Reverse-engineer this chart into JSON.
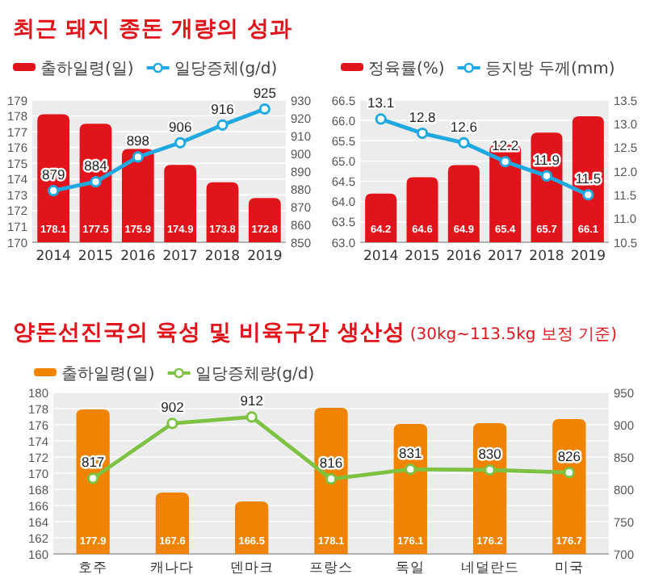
{
  "chart_data": [
    {
      "type": "bar",
      "title": "최근 돼지 종돈 개량의 성과",
      "categories": [
        "2014",
        "2015",
        "2016",
        "2017",
        "2018",
        "2019"
      ],
      "series": [
        {
          "name": "출하일령(일)",
          "type": "bar",
          "color": "#e2141b",
          "values": [
            178.1,
            177.5,
            175.9,
            174.9,
            173.8,
            172.8
          ]
        },
        {
          "name": "일당증체(g/d)",
          "type": "line",
          "axis": "y2",
          "color": "#20a9e1",
          "values": [
            879,
            884,
            898,
            906,
            916,
            925
          ]
        }
      ],
      "ylim": [
        170,
        179
      ],
      "yticks": [
        170,
        171,
        172,
        173,
        174,
        175,
        176,
        177,
        178,
        179
      ],
      "y2lim": [
        850,
        930
      ],
      "y2ticks": [
        850,
        860,
        870,
        880,
        890,
        900,
        910,
        920,
        930
      ],
      "grid": "y",
      "legend": "top left",
      "marker": "circle",
      "data_labels": true
    },
    {
      "type": "bar",
      "categories": [
        "2014",
        "2015",
        "2016",
        "2017",
        "2018",
        "2019"
      ],
      "series": [
        {
          "name": "정육률(%)",
          "type": "bar",
          "color": "#e2141b",
          "values": [
            64.2,
            64.6,
            64.9,
            65.4,
            65.7,
            66.1
          ]
        },
        {
          "name": "등지방 두께(mm)",
          "type": "line",
          "axis": "y2",
          "color": "#20a9e1",
          "values": [
            13.1,
            12.8,
            12.6,
            12.2,
            11.9,
            11.5
          ]
        }
      ],
      "ylim": [
        63,
        66.5
      ],
      "yticks": [
        {
          "value": 63,
          "label": "63.0"
        },
        {
          "value": 63.5,
          "label": "63.5"
        },
        {
          "value": 64,
          "label": "64.0"
        },
        {
          "value": 64.5,
          "label": "64.5"
        },
        {
          "value": 65,
          "label": "65.0"
        },
        {
          "value": 65.5,
          "label": "65.5"
        },
        {
          "value": 66,
          "label": "66.0"
        },
        {
          "value": 66.5,
          "label": "66.5"
        }
      ],
      "y2lim": [
        10.5,
        13.5
      ],
      "y2ticks": [
        10.5,
        {
          "value": 11,
          "label": "11.0"
        },
        11.5,
        {
          "value": 12,
          "label": "12.0"
        },
        12.5,
        {
          "value": 13,
          "label": "13.0"
        },
        13.5
      ],
      "grid": "y",
      "legend": "top left",
      "marker": "circle",
      "data_labels": true
    },
    {
      "type": "bar",
      "title": "양돈선진국의 육성 및 비육구간 생산성",
      "subtitle": "(30kg~113.5kg 보정 기준)",
      "categories": [
        "호주",
        "캐나다",
        "덴마크",
        "프랑스",
        "독일",
        "네덜란드",
        "미국"
      ],
      "series": [
        {
          "name": "출하일령(일)",
          "type": "bar",
          "color": "#f08300",
          "values": [
            177.9,
            167.6,
            166.5,
            178.1,
            176.1,
            176.2,
            176.7
          ]
        },
        {
          "name": "일당증체량(g/d)",
          "type": "line",
          "axis": "y2",
          "color": "#7dc242",
          "values": [
            817,
            902,
            912,
            816,
            831,
            830,
            826
          ]
        }
      ],
      "ylim": [
        160,
        180
      ],
      "yticks": [
        160,
        162,
        164,
        166,
        168,
        170,
        172,
        174,
        176,
        178,
        180
      ],
      "y2lim": [
        700,
        950
      ],
      "y2ticks": [
        700,
        750,
        800,
        850,
        900,
        950
      ],
      "grid": "y",
      "legend": "top left",
      "marker": "circle",
      "data_labels": true
    }
  ]
}
